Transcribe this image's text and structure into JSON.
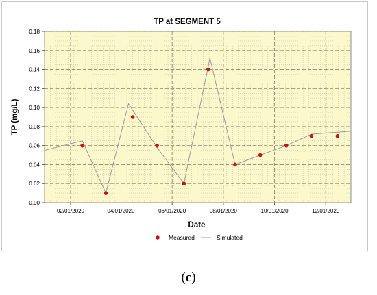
{
  "chart_data": {
    "type": "line",
    "title": "TP at SEGMENT 5",
    "xlabel": "Date",
    "ylabel": "TP (mg/L)",
    "x_range": [
      "2020-01-01",
      "2020-12-31"
    ],
    "ylim": [
      0,
      0.18
    ],
    "y_ticks": [
      "0.00",
      "0.02",
      "0.04",
      "0.06",
      "0.08",
      "0.10",
      "0.12",
      "0.14",
      "0.16",
      "0.18"
    ],
    "x_ticks": [
      {
        "date": "2020-02-01",
        "label": "02/01/2020"
      },
      {
        "date": "2020-04-01",
        "label": "04/01/2020"
      },
      {
        "date": "2020-06-01",
        "label": "06/01/2020"
      },
      {
        "date": "2020-08-01",
        "label": "08/01/2020"
      },
      {
        "date": "2020-10-01",
        "label": "10/01/2020"
      },
      {
        "date": "2020-12-01",
        "label": "12/01/2020"
      }
    ],
    "grid": true,
    "legend_position": "bottom",
    "series": [
      {
        "name": "Measured",
        "style": "markers",
        "color": "#cc1111",
        "points": [
          {
            "x": "2020-02-15",
            "y": 0.06
          },
          {
            "x": "2020-03-14",
            "y": 0.01
          },
          {
            "x": "2020-04-15",
            "y": 0.09
          },
          {
            "x": "2020-05-14",
            "y": 0.06
          },
          {
            "x": "2020-06-15",
            "y": 0.02
          },
          {
            "x": "2020-07-14",
            "y": 0.14
          },
          {
            "x": "2020-08-15",
            "y": 0.04
          },
          {
            "x": "2020-09-14",
            "y": 0.05
          },
          {
            "x": "2020-10-15",
            "y": 0.06
          },
          {
            "x": "2020-11-14",
            "y": 0.07
          },
          {
            "x": "2020-12-15",
            "y": 0.07
          }
        ]
      },
      {
        "name": "Simulated",
        "style": "line",
        "color": "#999999",
        "points": [
          {
            "x": "2020-01-01",
            "y": 0.055
          },
          {
            "x": "2020-02-15",
            "y": 0.065
          },
          {
            "x": "2020-03-14",
            "y": 0.01
          },
          {
            "x": "2020-04-10",
            "y": 0.104
          },
          {
            "x": "2020-05-14",
            "y": 0.058
          },
          {
            "x": "2020-06-15",
            "y": 0.02
          },
          {
            "x": "2020-07-16",
            "y": 0.152
          },
          {
            "x": "2020-08-15",
            "y": 0.04
          },
          {
            "x": "2020-09-14",
            "y": 0.05
          },
          {
            "x": "2020-10-15",
            "y": 0.06
          },
          {
            "x": "2020-11-14",
            "y": 0.072
          },
          {
            "x": "2020-12-31",
            "y": 0.075
          }
        ]
      }
    ],
    "colors": {
      "plot_background": "#fbf8cc",
      "grid": "#c9c7a4"
    }
  },
  "caption": {
    "open": "(",
    "letter": "c",
    "close": ")"
  }
}
